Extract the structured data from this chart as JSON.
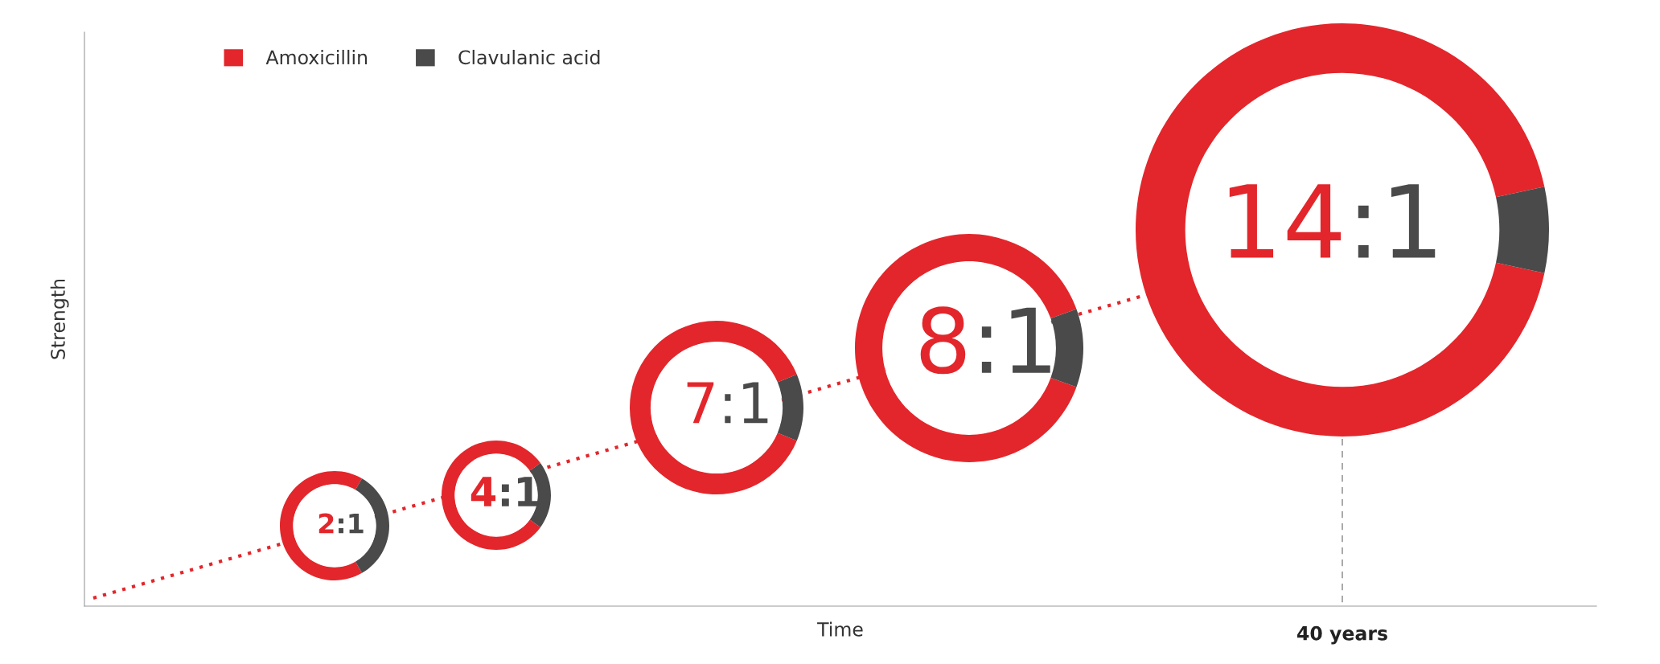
{
  "chart_data": [
    {
      "type": "other",
      "xlabel": "Time",
      "ylabel": "Strength",
      "annotations": [
        "40 years"
      ]
    },
    {
      "type": "donut",
      "categories": [
        "Amoxicillin",
        "Clavulanic acid"
      ],
      "values": [
        66.7,
        33.3
      ],
      "colors": [
        "#e3262b",
        "#4a4a4a"
      ],
      "annotations": [
        "2:1"
      ],
      "legend": "top"
    },
    {
      "type": "donut",
      "values": [
        80,
        20
      ],
      "colors": [
        "#e3262b",
        "#4a4a4a"
      ],
      "annotations": [
        "4:1"
      ]
    },
    {
      "type": "donut",
      "values": [
        87.5,
        12.5
      ],
      "colors": [
        "#e3262b",
        "#4a4a4a"
      ],
      "annotations": [
        "7:1"
      ]
    },
    {
      "type": "donut",
      "values": [
        88.9,
        11.1
      ],
      "colors": [
        "#e3262b",
        "#4a4a4a"
      ],
      "annotations": [
        "8:1"
      ]
    },
    {
      "type": "donut",
      "values": [
        93.3,
        6.7
      ],
      "colors": [
        "#e3262b",
        "#4a4a4a"
      ],
      "annotations": [
        "14:1"
      ]
    }
  ]
}
